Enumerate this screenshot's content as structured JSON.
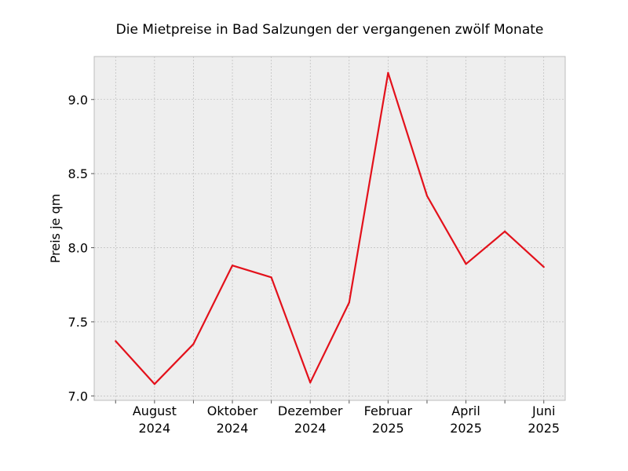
{
  "chart_data": {
    "type": "line",
    "title": "Die Mietpreise in Bad Salzungen der vergangenen zwölf Monate",
    "xlabel": "",
    "ylabel": "Preis je qm",
    "x": [
      "2024-07",
      "2024-08",
      "2024-09",
      "2024-10",
      "2024-11",
      "2024-12",
      "2025-01",
      "2025-02",
      "2025-03",
      "2025-04",
      "2025-05",
      "2025-06"
    ],
    "series": [
      {
        "values": [
          7.37,
          7.08,
          7.35,
          7.88,
          7.8,
          7.09,
          7.63,
          9.18,
          8.35,
          7.89,
          8.11,
          7.87
        ]
      }
    ],
    "ylim": [
      6.97,
      9.29
    ],
    "yticks": [
      "7.0",
      "7.5",
      "8.0",
      "8.5",
      "9.0"
    ],
    "xtick_labels": [
      {
        "month": "August",
        "year": "2024"
      },
      {
        "month": "Oktober",
        "year": "2024"
      },
      {
        "month": "Dezember",
        "year": "2024"
      },
      {
        "month": "Februar",
        "year": "2025"
      },
      {
        "month": "April",
        "year": "2025"
      },
      {
        "month": "Juni",
        "year": "2025"
      }
    ],
    "grid": true,
    "line_color": "#e3111b",
    "background_color": "#eeeeee"
  }
}
